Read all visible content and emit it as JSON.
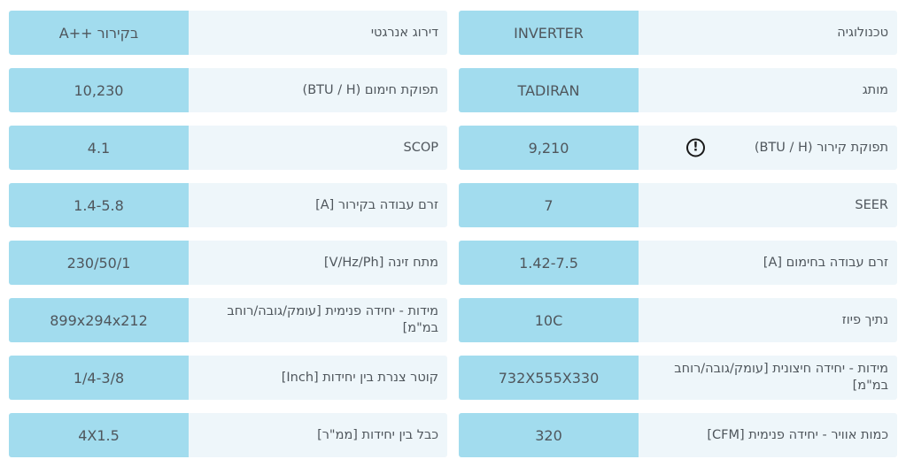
{
  "colors": {
    "value_bg": "#a2dcee",
    "label_bg": "#eef6fa",
    "text": "#4f565c",
    "icon": "#191919"
  },
  "warning_icon_glyph": "!",
  "table": {
    "columns": [
      {
        "side": "right",
        "rows": [
          {
            "label": "טכנולוגיה",
            "value": "INVERTER",
            "warning_icon": false
          },
          {
            "label": "מותג",
            "value": "TADIRAN",
            "warning_icon": false
          },
          {
            "label": "תפוקת קירור (BTU / H)",
            "value": "9,210",
            "warning_icon": true
          },
          {
            "label": "SEER",
            "value": "7",
            "warning_icon": false
          },
          {
            "label": "זרם עבודה בחימום [A]",
            "value": "1.42-7.5",
            "warning_icon": false
          },
          {
            "label": "נתיך פיוז",
            "value": "10C",
            "warning_icon": false
          },
          {
            "label": "מידות - יחידה חיצונית [עומק/גובה/רוחב במ\"מ]",
            "value": "732X555X330",
            "warning_icon": false
          },
          {
            "label": "כמות אוויר - יחידה פנימית [CFM]",
            "value": "320",
            "warning_icon": false
          }
        ]
      },
      {
        "side": "left",
        "rows": [
          {
            "label": "דירוג אנרגטי",
            "value": "A++ בקירור",
            "warning_icon": false
          },
          {
            "label": "תפוקת חימום (BTU / H)",
            "value": "10,230",
            "warning_icon": false
          },
          {
            "label": "SCOP",
            "value": "4.1",
            "warning_icon": false
          },
          {
            "label": "זרם עבודה בקירור [A]",
            "value": "1.4-5.8",
            "warning_icon": false
          },
          {
            "label": "מתח זינה [V/Hz/Ph]",
            "value": "230/50/1",
            "warning_icon": false
          },
          {
            "label": "מידות - יחידה פנימית [עומק/גובה/רוחב במ\"מ]",
            "value": "899x294x212",
            "warning_icon": false
          },
          {
            "label": "קוטר צנרת בין יחידות [Inch]",
            "value": "1/4-3/8",
            "warning_icon": false
          },
          {
            "label": "כבל בין יחידות [ממ\"ר]",
            "value": "4X1.5",
            "warning_icon": false
          }
        ]
      }
    ]
  }
}
